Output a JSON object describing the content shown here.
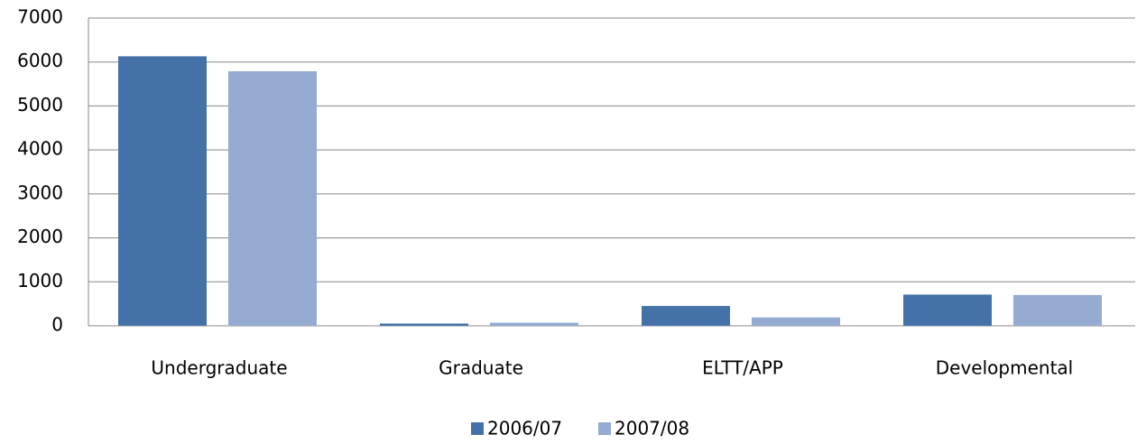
{
  "chart_data": {
    "type": "bar",
    "categories": [
      "Undergraduate",
      "Graduate",
      "ELTT/APP",
      "Developmental"
    ],
    "series": [
      {
        "name": "2006/07",
        "color": "#4472a8",
        "values": [
          6130,
          50,
          450,
          710
        ]
      },
      {
        "name": "2007/08",
        "color": "#95abd2",
        "values": [
          5790,
          70,
          190,
          700
        ]
      }
    ],
    "ylim": [
      0,
      7000
    ],
    "yticks": [
      0,
      1000,
      2000,
      3000,
      4000,
      5000,
      6000,
      7000
    ],
    "grid": true,
    "legend": "bottom"
  }
}
